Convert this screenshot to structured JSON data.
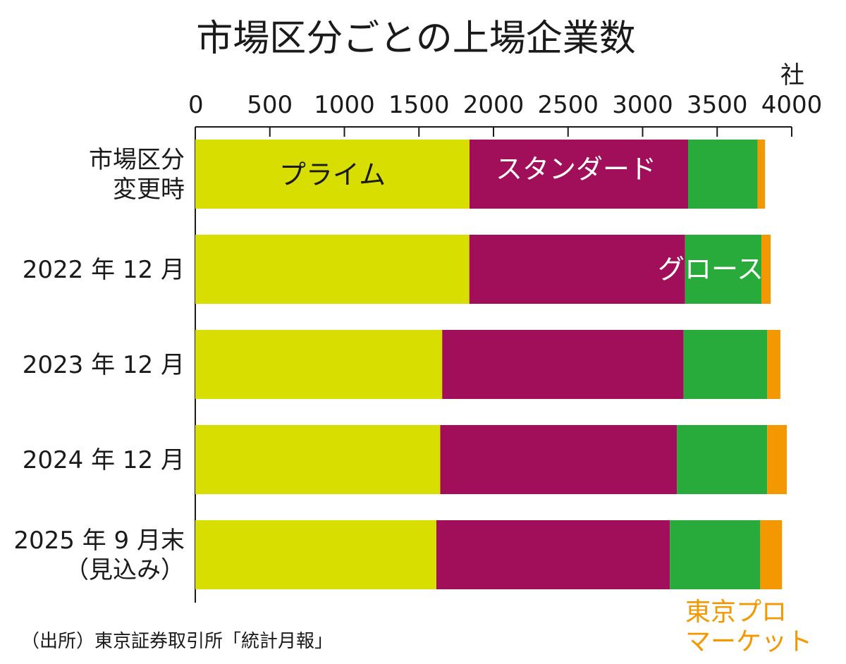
{
  "chart_data": {
    "type": "bar",
    "orientation": "horizontal",
    "stacked": true,
    "title": "市場区分ごとの上場企業数",
    "unit": "社",
    "xlim": [
      0,
      4000
    ],
    "x_ticks": [
      "0",
      "500",
      "1000",
      "1500",
      "2000",
      "2500",
      "3000",
      "3500",
      "4000"
    ],
    "categories": [
      [
        "市場区分",
        "変更時"
      ],
      [
        "2022 年 12 月"
      ],
      [
        "2023 年 12 月"
      ],
      [
        "2024 年 12 月"
      ],
      [
        "2025 年 9 月末",
        "（見込み）"
      ]
    ],
    "series": [
      {
        "name": "プライム",
        "color": "#d8df00",
        "label_color": "#1a1a1a",
        "values": [
          1839,
          1838,
          1656,
          1643,
          1617
        ]
      },
      {
        "name": "スタンダード",
        "color": "#a10f5a",
        "label_color": "#ffffff",
        "values": [
          1466,
          1447,
          1619,
          1587,
          1566
        ]
      },
      {
        "name": "グロース",
        "color": "#29ab3c",
        "label_color": "#ffffff",
        "values": [
          466,
          512,
          561,
          605,
          606
        ]
      },
      {
        "name": "東京プロ\nマーケット",
        "color": "#f39800",
        "label_color": "#f39800",
        "values": [
          50,
          62,
          88,
          132,
          146
        ]
      }
    ],
    "grid": false,
    "source": "（出所）東京証券取引所「統計月報」"
  }
}
